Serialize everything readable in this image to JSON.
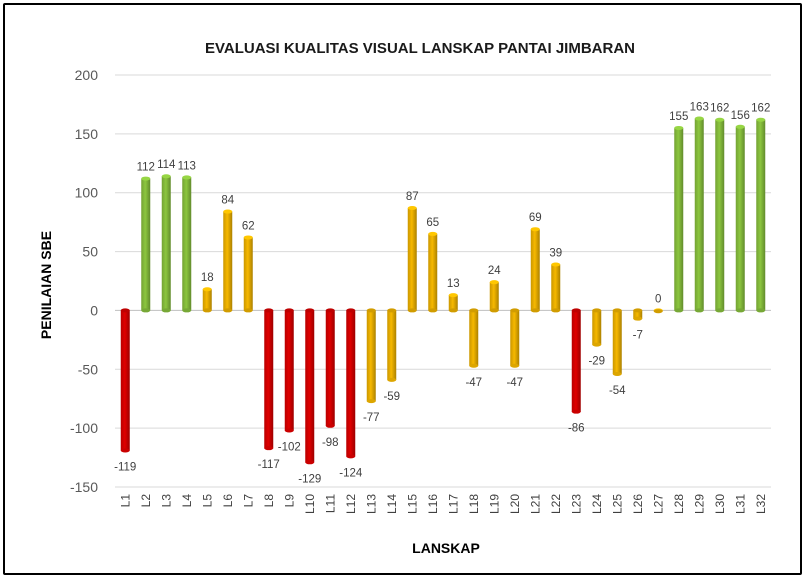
{
  "chart_data": {
    "type": "bar",
    "title": "EVALUASI KUALITAS VISUAL LANSKAP PANTAI JIMBARAN",
    "xlabel": "LANSKAP",
    "ylabel": "PENILAIAN SBE",
    "ylim": [
      -150,
      200
    ],
    "yticks": [
      -150,
      -100,
      -50,
      0,
      50,
      100,
      150,
      200
    ],
    "grid": true,
    "legend": "none",
    "categories": [
      "L1",
      "L2",
      "L3",
      "L4",
      "L5",
      "L6",
      "L7",
      "L8",
      "L9",
      "L10",
      "L11",
      "L12",
      "L13",
      "L14",
      "L15",
      "L16",
      "L17",
      "L18",
      "L19",
      "L20",
      "L21",
      "L22",
      "L23",
      "L24",
      "L25",
      "L26",
      "L27",
      "L28",
      "L29",
      "L30",
      "L31",
      "L32"
    ],
    "values": [
      -119,
      112,
      114,
      113,
      18,
      84,
      62,
      -117,
      -102,
      -129,
      -98,
      -124,
      -77,
      -59,
      87,
      65,
      13,
      -47,
      24,
      -47,
      69,
      39,
      -86,
      -29,
      -54,
      -7,
      0,
      155,
      163,
      162,
      156,
      162
    ],
    "colors": {
      "red": "#e00000",
      "green": "#8cc63f",
      "yellow": "#f6b800"
    },
    "bar_colors": [
      "red",
      "green",
      "green",
      "green",
      "yellow",
      "yellow",
      "yellow",
      "red",
      "red",
      "red",
      "red",
      "red",
      "yellow",
      "yellow",
      "yellow",
      "yellow",
      "yellow",
      "yellow",
      "yellow",
      "yellow",
      "yellow",
      "yellow",
      "red",
      "yellow",
      "yellow",
      "yellow",
      "yellow",
      "green",
      "green",
      "green",
      "green",
      "green"
    ]
  }
}
